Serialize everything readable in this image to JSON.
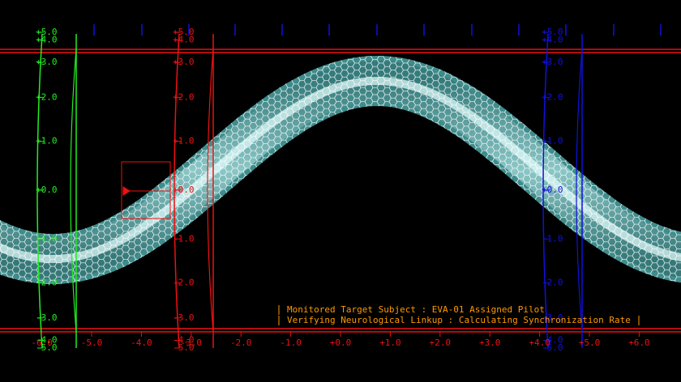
{
  "gauge_scale": [
    {
      "value": 5,
      "label": "+5.0"
    },
    {
      "value": 4,
      "label": "+4.0"
    },
    {
      "value": 3,
      "label": "+3.0"
    },
    {
      "value": 2,
      "label": "+2.0"
    },
    {
      "value": 1,
      "label": "+1.0"
    },
    {
      "value": 0,
      "label": "+0.0"
    },
    {
      "value": -1,
      "label": "-1.0"
    },
    {
      "value": -2,
      "label": "-2.0"
    },
    {
      "value": -3,
      "label": "-3.0"
    },
    {
      "value": -4,
      "label": "-4.0"
    },
    {
      "value": -5,
      "label": "-5.0"
    }
  ],
  "gauges": [
    {
      "color": "#22ee22"
    },
    {
      "color": "#ee1111"
    },
    {
      "color": "#1111dd"
    }
  ],
  "x_scale": [
    {
      "value": -6,
      "label": "-6.0"
    },
    {
      "value": -5,
      "label": "-5.0"
    },
    {
      "value": -4,
      "label": "-4.0"
    },
    {
      "value": -3,
      "label": "-3.0"
    },
    {
      "value": -2,
      "label": "-2.0"
    },
    {
      "value": -1,
      "label": "-1.0"
    },
    {
      "value": 0,
      "label": "+0.0"
    },
    {
      "value": 1,
      "label": "+1.0"
    },
    {
      "value": 2,
      "label": "+2.0"
    },
    {
      "value": 3,
      "label": "+3.0"
    },
    {
      "value": 4,
      "label": "+4.0"
    },
    {
      "value": 5,
      "label": "+5.0"
    },
    {
      "value": 6,
      "label": "+6.0"
    }
  ],
  "status": [
    "Monitored Target Subject :  EVA-01 Assigned Pilot",
    "Verifying Neurological Linkup :  Calculating Synchronization Rate"
  ]
}
